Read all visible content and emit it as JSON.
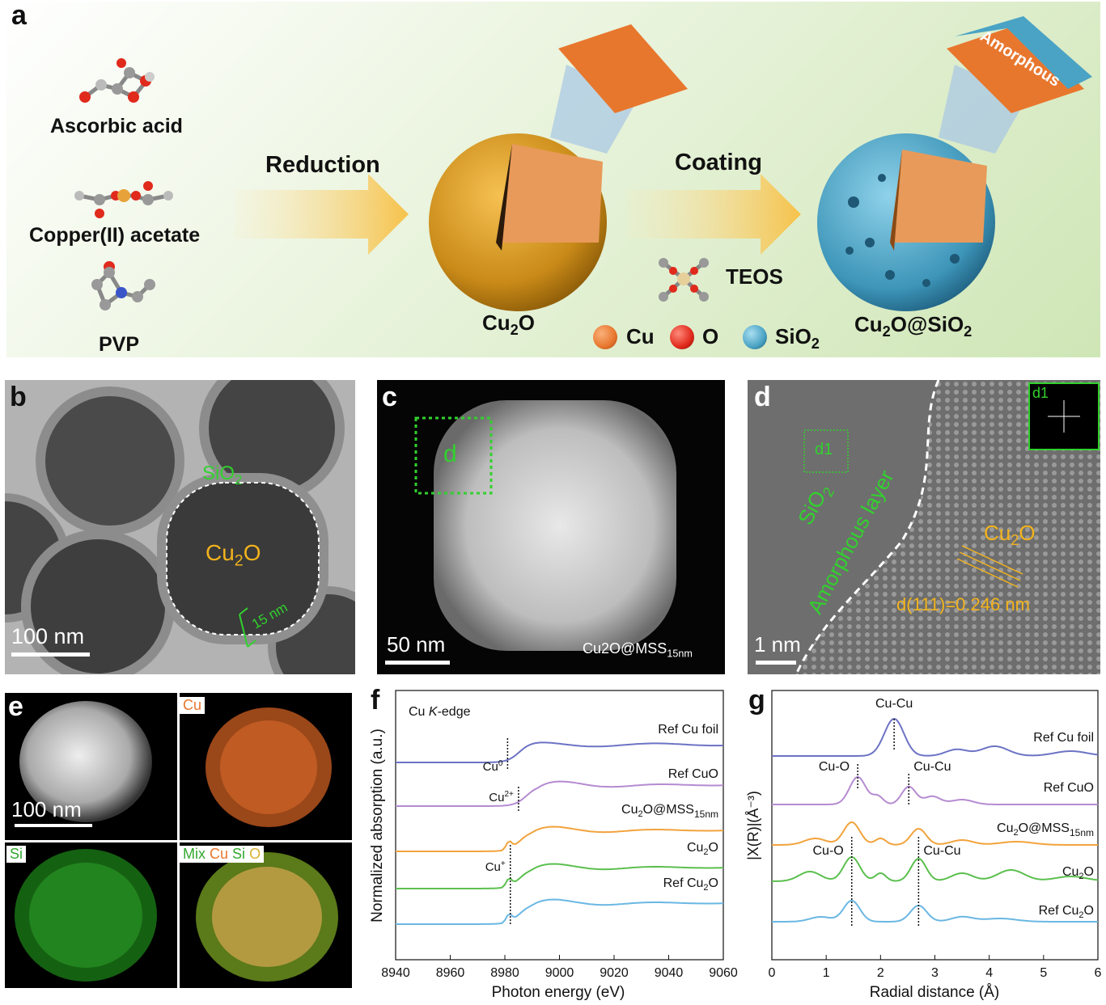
{
  "panel_a": {
    "label": "a",
    "precursors": [
      "Ascorbic acid",
      "Copper(II) acetate",
      "PVP"
    ],
    "step1": "Reduction",
    "step2": "Coating",
    "reagent": "TEOS",
    "product1": "Cu2O",
    "product2": "Cu2O@SiO2",
    "inset2_text": "Amorphous",
    "legend": [
      {
        "label": "Cu",
        "color": "#e8772e"
      },
      {
        "label": "O",
        "color": "#e02a1c"
      },
      {
        "label": "SiO2",
        "color": "#4aa3c4"
      }
    ]
  },
  "panel_b": {
    "label": "b",
    "shell": "SiO2",
    "core": "Cu2O",
    "thickness": "15 nm",
    "scale": "100 nm"
  },
  "panel_c": {
    "label": "c",
    "box": "d",
    "scale": "50 nm",
    "caption_main": "Cu2O@MSS",
    "caption_sub": "15nm"
  },
  "panel_d": {
    "label": "d",
    "box": "d1",
    "inset": "d1",
    "sio2": "SiO2",
    "layer": "Amorphous layer",
    "cu2o": "Cu2O",
    "spacing": "d(111)=0.246 nm",
    "scale": "1 nm"
  },
  "panel_e": {
    "label": "e",
    "tiles": [
      "Cu",
      "Si",
      "Mix"
    ],
    "mix_legend": [
      "Cu",
      "Si",
      "O"
    ],
    "scale": "100 nm"
  },
  "chart_f": {
    "type": "line",
    "panel": "f",
    "note": "Cu K-edge",
    "xlabel": "Photon energy (eV)",
    "ylabel": "Normalized absorption (a.u.)",
    "xlim": [
      8940,
      9060
    ],
    "xticks": [
      8940,
      8960,
      8980,
      9000,
      9020,
      9040,
      9060
    ],
    "series": [
      {
        "name": "Ref Cu foil",
        "color": "#6c73c4",
        "offset": 4.4
      },
      {
        "name": "Ref CuO",
        "color": "#b58bd1",
        "offset": 3.3
      },
      {
        "name": "Cu2O@MSS15nm",
        "color": "#f2a33c",
        "offset": 2.2
      },
      {
        "name": "Cu2O",
        "color": "#5bbf4e",
        "offset": 1.1
      },
      {
        "name": "Ref Cu2O",
        "color": "#6ab7e3",
        "offset": 0.0
      }
    ],
    "markers": [
      {
        "label": "Cu0",
        "x": 8981
      },
      {
        "label": "Cu2+",
        "x": 8985
      },
      {
        "label": "Cu+",
        "x": 8982
      }
    ]
  },
  "chart_g": {
    "type": "line",
    "panel": "g",
    "xlabel": "Radial distance (Å)",
    "ylabel": "|X(R)|(Å⁻³)",
    "xlim": [
      0,
      6
    ],
    "xticks": [
      0,
      1,
      2,
      3,
      4,
      5,
      6
    ],
    "series": [
      {
        "name": "Ref Cu foil",
        "color": "#6c73c4"
      },
      {
        "name": "Ref CuO",
        "color": "#b58bd1"
      },
      {
        "name": "Cu2O@MSS15nm",
        "color": "#f2a33c"
      },
      {
        "name": "Cu2O",
        "color": "#5bbf4e"
      },
      {
        "name": "Ref Cu2O",
        "color": "#6ab7e3"
      }
    ],
    "peaks": [
      {
        "label": "Cu-Cu",
        "x": 2.25
      },
      {
        "label": "Cu-O",
        "x": 1.58
      },
      {
        "label": "Cu-Cu",
        "x": 2.52
      },
      {
        "label": "Cu-O",
        "x": 1.47
      },
      {
        "label": "Cu-Cu",
        "x": 2.7
      }
    ]
  }
}
